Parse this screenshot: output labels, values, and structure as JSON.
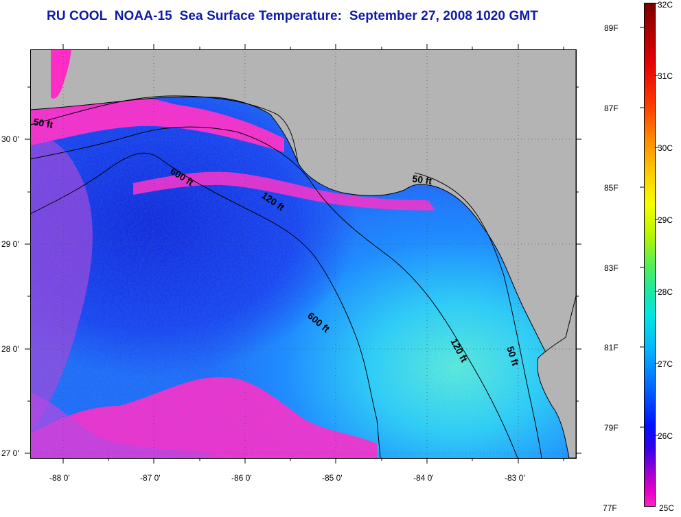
{
  "title": "RU COOL  NOAA-15  Sea Surface Temperature:  September 27, 2008 1020 GMT",
  "map": {
    "lon_labels": [
      "-88 0'",
      "-87 0'",
      "-86 0'",
      "-85 0'",
      "-84 0'",
      "-83 0'"
    ],
    "lat_labels": [
      "30 0'",
      "29 0'",
      "28 0'",
      "27 0'"
    ],
    "contour_labels": [
      "50 ft",
      "600 ft",
      "120 ft",
      "50 ft",
      "600 ft",
      "120 ft",
      "50 ft"
    ],
    "colors": {
      "land": "#b4b4b4",
      "cold_water": "#ff2cc6",
      "deep_blue": "#1430e6",
      "mid_blue": "#1e78ff",
      "warm_cyan": "#3ce0f0"
    }
  },
  "colorbar": {
    "celsius_labels": [
      "32C",
      "31C",
      "30C",
      "29C",
      "28C",
      "27C",
      "26C",
      "25C"
    ],
    "fahrenheit_labels": [
      "89F",
      "87F",
      "85F",
      "83F",
      "81F",
      "79F",
      "77F"
    ]
  }
}
